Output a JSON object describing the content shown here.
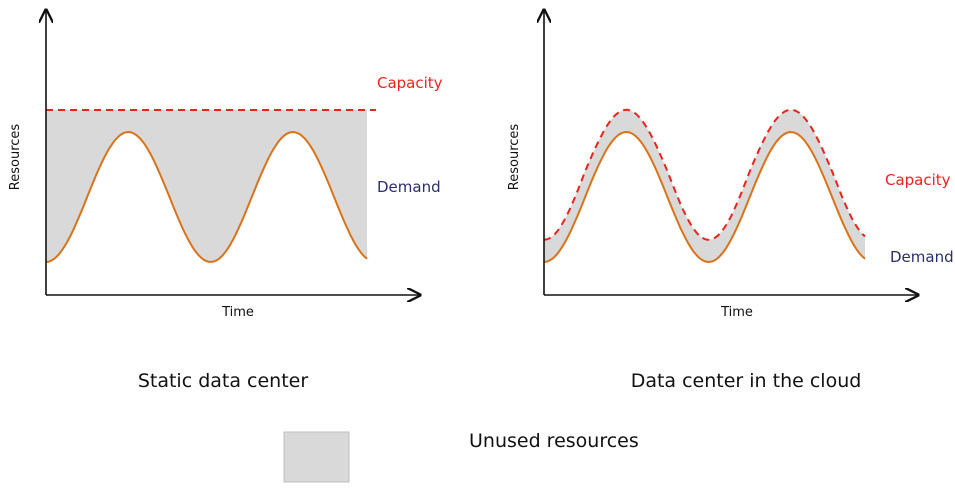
{
  "panels": [
    {
      "title": "Static data center",
      "xlabel": "Time",
      "ylabel": "Resources",
      "capacity_label": "Capacity",
      "demand_label": "Demand"
    },
    {
      "title": "Data center in the cloud",
      "xlabel": "Time",
      "ylabel": "Resources",
      "capacity_label": "Capacity",
      "demand_label": "Demand"
    }
  ],
  "legend": {
    "label": "Unused resources"
  },
  "colors": {
    "capacity": "#e8251b",
    "demand": "#d9731a",
    "demand_label": "#2b2d6e",
    "unused_fill": "#d9d9d9",
    "axis": "#111111"
  }
}
